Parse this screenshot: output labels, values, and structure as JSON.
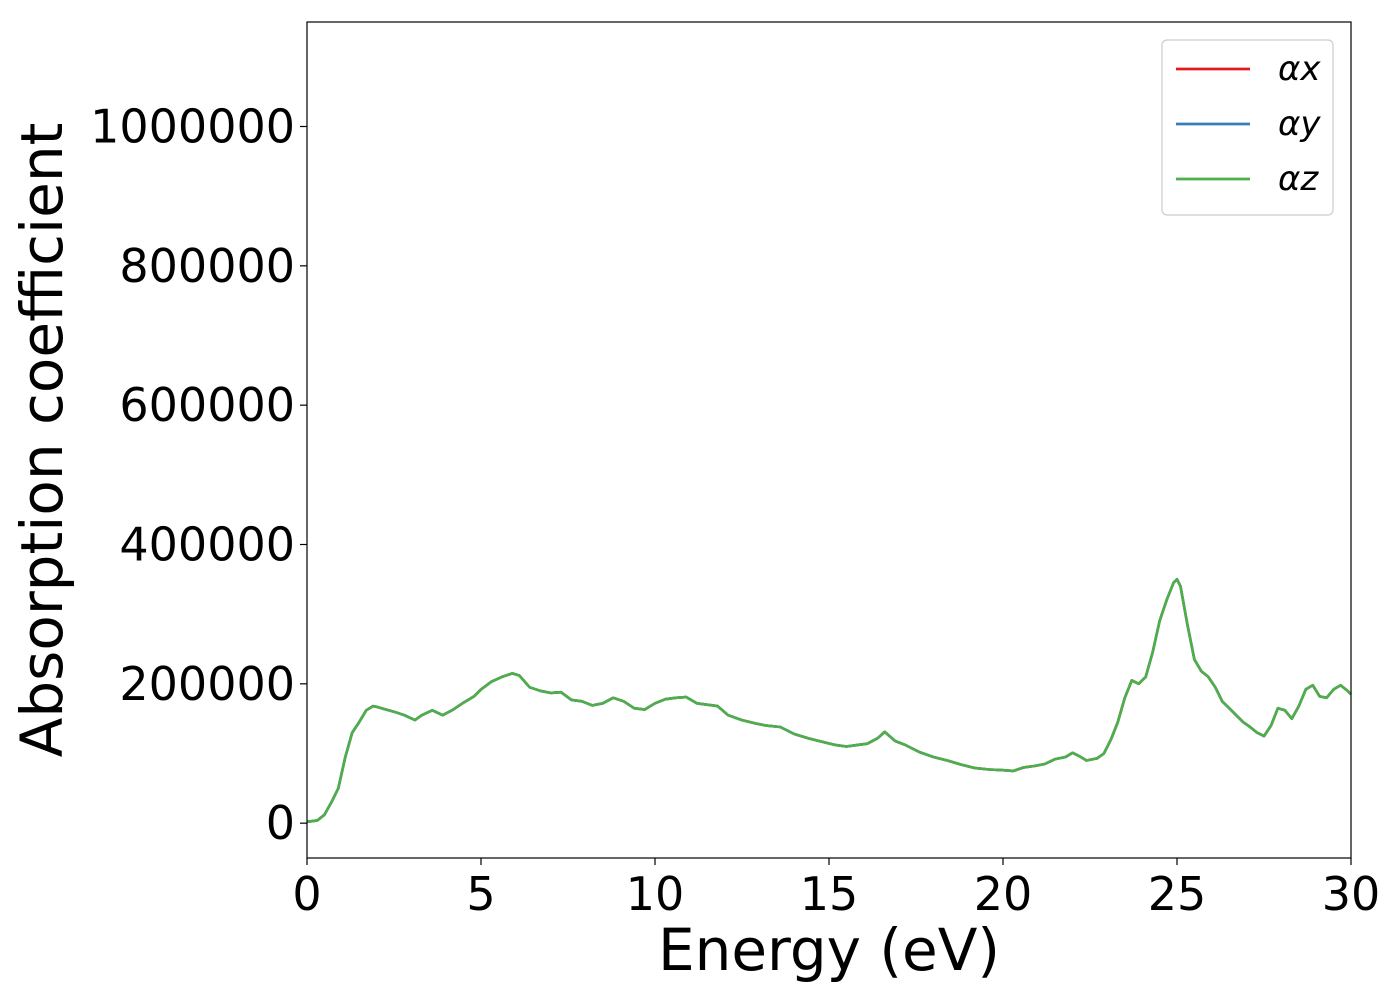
{
  "chart_data": {
    "type": "line",
    "title": "",
    "xlabel": "Energy (eV)",
    "ylabel": "Absorption coefficient",
    "xlim": [
      0,
      30
    ],
    "ylim": [
      -50000,
      1150000
    ],
    "xticks": [
      0,
      5,
      10,
      15,
      20,
      25,
      30
    ],
    "yticks": [
      0,
      200000,
      400000,
      600000,
      800000,
      1000000
    ],
    "xtick_labels": [
      "0",
      "5",
      "10",
      "15",
      "20",
      "25",
      "30"
    ],
    "ytick_labels": [
      "0",
      "200000",
      "400000",
      "600000",
      "800000",
      "1000000"
    ],
    "grid": false,
    "legend_position": "top-right",
    "x": [
      0,
      0.3,
      0.5,
      0.7,
      0.9,
      1.1,
      1.3,
      1.5,
      1.7,
      1.9,
      2.0,
      2.2,
      2.5,
      2.8,
      3.1,
      3.3,
      3.6,
      3.9,
      4.2,
      4.5,
      4.8,
      5.0,
      5.3,
      5.6,
      5.9,
      6.1,
      6.4,
      6.7,
      7.0,
      7.3,
      7.6,
      7.9,
      8.2,
      8.5,
      8.8,
      9.1,
      9.4,
      9.7,
      10.0,
      10.3,
      10.6,
      10.9,
      11.2,
      11.5,
      11.8,
      12.1,
      12.5,
      12.9,
      13.2,
      13.6,
      14.0,
      14.4,
      14.8,
      15.2,
      15.5,
      15.8,
      16.1,
      16.4,
      16.6,
      16.9,
      17.2,
      17.6,
      18.0,
      18.4,
      18.8,
      19.2,
      19.6,
      20.0,
      20.3,
      20.6,
      20.9,
      21.2,
      21.5,
      21.8,
      22.0,
      22.2,
      22.4,
      22.7,
      22.9,
      23.1,
      23.3,
      23.5,
      23.7,
      23.9,
      24.1,
      24.3,
      24.5,
      24.7,
      24.9,
      25.0,
      25.1,
      25.3,
      25.5,
      25.7,
      25.9,
      26.1,
      26.3,
      26.5,
      26.7,
      26.9,
      27.1,
      27.3,
      27.5,
      27.7,
      27.9,
      28.1,
      28.3,
      28.5,
      28.7,
      28.9,
      29.1,
      29.3,
      29.5,
      29.7,
      29.9,
      30.0
    ],
    "series": [
      {
        "name": "αx",
        "color": "#e41a1c",
        "values": [
          2000,
          4000,
          12000,
          30000,
          50000,
          95000,
          130000,
          145000,
          162000,
          168000,
          167000,
          164000,
          160000,
          155000,
          148000,
          155000,
          162000,
          155000,
          163000,
          173000,
          182000,
          192000,
          203000,
          210000,
          215000,
          212000,
          195000,
          190000,
          187000,
          188000,
          177000,
          175000,
          169000,
          172000,
          180000,
          175000,
          165000,
          163000,
          172000,
          178000,
          180000,
          181000,
          172000,
          170000,
          168000,
          155000,
          148000,
          143000,
          140000,
          138000,
          128000,
          122000,
          117000,
          112000,
          110000,
          112000,
          114000,
          122000,
          131000,
          118000,
          112000,
          102000,
          95000,
          90000,
          84000,
          79000,
          77000,
          76000,
          75000,
          80000,
          82000,
          85000,
          92000,
          95000,
          101000,
          96000,
          90000,
          93000,
          100000,
          120000,
          145000,
          180000,
          205000,
          200000,
          210000,
          245000,
          290000,
          320000,
          345000,
          350000,
          340000,
          285000,
          235000,
          218000,
          210000,
          195000,
          175000,
          165000,
          155000,
          145000,
          138000,
          130000,
          125000,
          140000,
          165000,
          162000,
          150000,
          168000,
          192000,
          198000,
          182000,
          180000,
          192000,
          198000,
          190000,
          185000
        ]
      },
      {
        "name": "αy",
        "color": "#377eb8",
        "values": [
          2000,
          4000,
          12000,
          30000,
          50000,
          95000,
          130000,
          145000,
          162000,
          168000,
          167000,
          164000,
          160000,
          155000,
          148000,
          155000,
          162000,
          155000,
          163000,
          173000,
          182000,
          192000,
          203000,
          210000,
          215000,
          212000,
          195000,
          190000,
          187000,
          188000,
          177000,
          175000,
          169000,
          172000,
          180000,
          175000,
          165000,
          163000,
          172000,
          178000,
          180000,
          181000,
          172000,
          170000,
          168000,
          155000,
          148000,
          143000,
          140000,
          138000,
          128000,
          122000,
          117000,
          112000,
          110000,
          112000,
          114000,
          122000,
          131000,
          118000,
          112000,
          102000,
          95000,
          90000,
          84000,
          79000,
          77000,
          76000,
          75000,
          80000,
          82000,
          85000,
          92000,
          95000,
          101000,
          96000,
          90000,
          93000,
          100000,
          120000,
          145000,
          180000,
          205000,
          200000,
          210000,
          245000,
          290000,
          320000,
          345000,
          350000,
          340000,
          285000,
          235000,
          218000,
          210000,
          195000,
          175000,
          165000,
          155000,
          145000,
          138000,
          130000,
          125000,
          140000,
          165000,
          162000,
          150000,
          168000,
          192000,
          198000,
          182000,
          180000,
          192000,
          198000,
          190000,
          185000
        ]
      },
      {
        "name": "αz",
        "color": "#4daf4a",
        "values": [
          2000,
          4000,
          12000,
          30000,
          50000,
          95000,
          130000,
          145000,
          162000,
          168000,
          167000,
          164000,
          160000,
          155000,
          148000,
          155000,
          162000,
          155000,
          163000,
          173000,
          182000,
          192000,
          203000,
          210000,
          215000,
          212000,
          195000,
          190000,
          187000,
          188000,
          177000,
          175000,
          169000,
          172000,
          180000,
          175000,
          165000,
          163000,
          172000,
          178000,
          180000,
          181000,
          172000,
          170000,
          168000,
          155000,
          148000,
          143000,
          140000,
          138000,
          128000,
          122000,
          117000,
          112000,
          110000,
          112000,
          114000,
          122000,
          131000,
          118000,
          112000,
          102000,
          95000,
          90000,
          84000,
          79000,
          77000,
          76000,
          75000,
          80000,
          82000,
          85000,
          92000,
          95000,
          101000,
          96000,
          90000,
          93000,
          100000,
          120000,
          145000,
          180000,
          205000,
          200000,
          210000,
          245000,
          290000,
          320000,
          345000,
          350000,
          340000,
          285000,
          235000,
          218000,
          210000,
          195000,
          175000,
          165000,
          155000,
          145000,
          138000,
          130000,
          125000,
          140000,
          165000,
          162000,
          150000,
          168000,
          192000,
          198000,
          182000,
          180000,
          192000,
          198000,
          190000,
          185000
        ]
      }
    ]
  }
}
